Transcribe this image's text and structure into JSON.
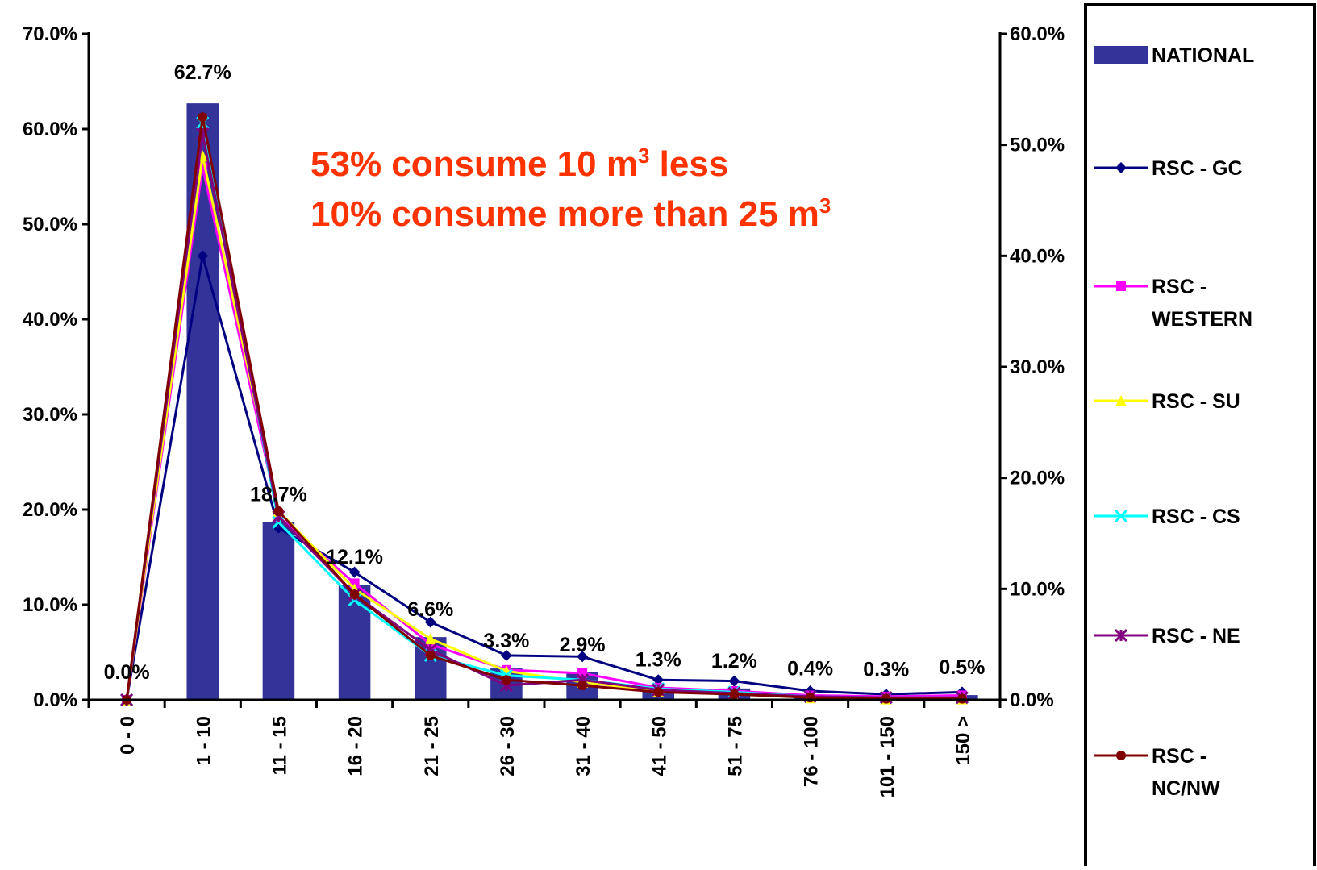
{
  "chart_data": {
    "type": "bar+line",
    "categories": [
      "0 - 0",
      "1 - 10",
      "11 - 15",
      "16 - 20",
      "21 - 25",
      "26 - 30",
      "31 - 40",
      "41 - 50",
      "51 - 75",
      "76 - 100",
      "101 - 150",
      "150 >"
    ],
    "bar_series": {
      "name": "NATIONAL",
      "axis": "left",
      "values": [
        0.0,
        62.7,
        18.7,
        12.1,
        6.6,
        3.3,
        2.9,
        1.3,
        1.2,
        0.4,
        0.3,
        0.5
      ],
      "labels": [
        "0.0%",
        "62.7%",
        "18.7%",
        "12.1%",
        "6.6%",
        "3.3%",
        "2.9%",
        "1.3%",
        "1.2%",
        "0.4%",
        "0.3%",
        "0.5%"
      ],
      "color": "#333399"
    },
    "line_series": [
      {
        "name": "RSC - GC",
        "legend_lines": [
          "RSC - GC"
        ],
        "color": "#000080",
        "marker": "diamond",
        "values": [
          0.0,
          40.0,
          15.5,
          11.5,
          7.0,
          4.0,
          3.9,
          1.8,
          1.7,
          0.8,
          0.5,
          0.7
        ]
      },
      {
        "name": "RSC - WESTERN",
        "legend_lines": [
          "RSC -",
          "WESTERN"
        ],
        "color": "#ff00ff",
        "marker": "square",
        "values": [
          0.0,
          48.0,
          16.5,
          10.5,
          5.0,
          2.7,
          2.4,
          1.1,
          0.8,
          0.4,
          0.3,
          0.4
        ]
      },
      {
        "name": "RSC - SU",
        "legend_lines": [
          "RSC - SU"
        ],
        "color": "#ffff00",
        "marker": "triangle",
        "values": [
          0.0,
          49.0,
          17.0,
          10.0,
          5.5,
          2.6,
          1.6,
          0.8,
          0.6,
          0.2,
          0.1,
          0.1
        ]
      },
      {
        "name": "RSC - CS",
        "legend_lines": [
          "RSC - CS"
        ],
        "color": "#00ffff",
        "marker": "x",
        "values": [
          0.0,
          52.0,
          16.0,
          9.0,
          4.0,
          2.2,
          1.8,
          1.0,
          0.7,
          0.3,
          0.2,
          0.2
        ]
      },
      {
        "name": "RSC - NE",
        "legend_lines": [
          "RSC - NE"
        ],
        "color": "#800080",
        "marker": "star",
        "values": [
          0.0,
          51.0,
          16.5,
          9.5,
          4.5,
          1.3,
          1.8,
          0.9,
          0.6,
          0.3,
          0.2,
          0.2
        ]
      },
      {
        "name": "RSC - NC/NW",
        "legend_lines": [
          "RSC -",
          "NC/NW"
        ],
        "color": "#800000",
        "marker": "circle",
        "values": [
          0.0,
          52.5,
          17.0,
          9.5,
          4.0,
          1.8,
          1.3,
          0.7,
          0.5,
          0.2,
          0.1,
          0.1
        ]
      }
    ],
    "y_left": {
      "min": 0,
      "max": 70,
      "ticks": [
        0,
        10,
        20,
        30,
        40,
        50,
        60,
        70
      ],
      "tick_labels": [
        "0.0%",
        "10.0%",
        "20.0%",
        "30.0%",
        "40.0%",
        "50.0%",
        "60.0%",
        "70.0%"
      ]
    },
    "y_right": {
      "min": 0,
      "max": 60,
      "ticks": [
        0,
        10,
        20,
        30,
        40,
        50,
        60
      ],
      "tick_labels": [
        "0.0%",
        "10.0%",
        "20.0%",
        "30.0%",
        "40.0%",
        "50.0%",
        "60.0%"
      ]
    },
    "annotations": [
      {
        "text": "53% consume 10 m",
        "sup": "3",
        "suffix": " less"
      },
      {
        "text": "10% consume more than 25 m",
        "sup": "3",
        "suffix": ""
      }
    ],
    "annotation_color": "#ff3300",
    "legend_position": "right",
    "grid": false
  }
}
